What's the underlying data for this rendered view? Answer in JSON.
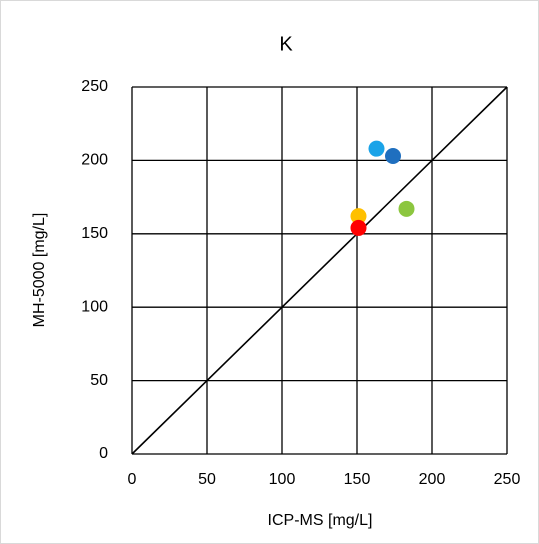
{
  "chart_data": {
    "type": "scatter",
    "title": "K",
    "x_label": "ICP-MS [mg/L]",
    "y_label": "MH-5000 [mg/L]",
    "x": [
      163,
      174,
      183,
      151,
      151
    ],
    "values": [
      208,
      203,
      167,
      162,
      154
    ],
    "colors": [
      "#1aa3e8",
      "#1f6fbf",
      "#8cc63f",
      "#ffc000",
      "#ff0000"
    ],
    "xlim": [
      0,
      250
    ],
    "ylim": [
      0,
      250
    ],
    "xticks": [
      0,
      50,
      100,
      150,
      200,
      250
    ],
    "yticks": [
      0,
      50,
      100,
      150,
      200,
      250
    ],
    "grid": true,
    "identity_line": true
  }
}
